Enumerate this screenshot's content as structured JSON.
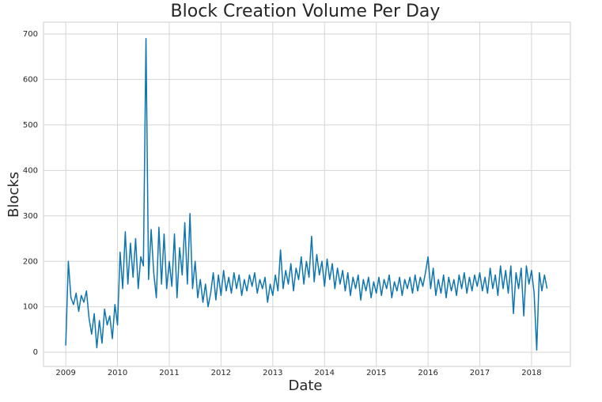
{
  "chart_data": {
    "type": "line",
    "title": "Block Creation Volume Per Day",
    "x_label": "Date",
    "y_label": "Blocks",
    "xlim": [
      2008.57,
      2018.75
    ],
    "xticks": [
      2009,
      2010,
      2011,
      2012,
      2013,
      2014,
      2015,
      2016,
      2017,
      2018
    ],
    "ylim": [
      -31,
      726
    ],
    "yticks": [
      0,
      100,
      200,
      300,
      400,
      500,
      600,
      700
    ],
    "grid": true,
    "x": [
      2009.0,
      2009.05,
      2009.1,
      2009.15,
      2009.2,
      2009.25,
      2009.3,
      2009.35,
      2009.4,
      2009.45,
      2009.5,
      2009.55,
      2009.6,
      2009.65,
      2009.7,
      2009.75,
      2009.8,
      2009.85,
      2009.9,
      2009.95,
      2010.0,
      2010.05,
      2010.1,
      2010.15,
      2010.2,
      2010.25,
      2010.3,
      2010.35,
      2010.4,
      2010.45,
      2010.5,
      2010.55,
      2010.6,
      2010.65,
      2010.7,
      2010.75,
      2010.8,
      2010.85,
      2010.9,
      2010.95,
      2011.0,
      2011.05,
      2011.1,
      2011.15,
      2011.2,
      2011.25,
      2011.3,
      2011.35,
      2011.4,
      2011.45,
      2011.5,
      2011.55,
      2011.6,
      2011.65,
      2011.7,
      2011.75,
      2011.8,
      2011.85,
      2011.9,
      2011.95,
      2012.0,
      2012.05,
      2012.1,
      2012.15,
      2012.2,
      2012.25,
      2012.3,
      2012.35,
      2012.4,
      2012.45,
      2012.5,
      2012.55,
      2012.6,
      2012.65,
      2012.7,
      2012.75,
      2012.8,
      2012.85,
      2012.9,
      2012.95,
      2013.0,
      2013.05,
      2013.1,
      2013.15,
      2013.2,
      2013.25,
      2013.3,
      2013.35,
      2013.4,
      2013.45,
      2013.5,
      2013.55,
      2013.6,
      2013.65,
      2013.7,
      2013.75,
      2013.8,
      2013.85,
      2013.9,
      2013.95,
      2014.0,
      2014.05,
      2014.1,
      2014.15,
      2014.2,
      2014.25,
      2014.3,
      2014.35,
      2014.4,
      2014.45,
      2014.5,
      2014.55,
      2014.6,
      2014.65,
      2014.7,
      2014.75,
      2014.8,
      2014.85,
      2014.9,
      2014.95,
      2015.0,
      2015.05,
      2015.1,
      2015.15,
      2015.2,
      2015.25,
      2015.3,
      2015.35,
      2015.4,
      2015.45,
      2015.5,
      2015.55,
      2015.6,
      2015.65,
      2015.7,
      2015.75,
      2015.8,
      2015.85,
      2015.9,
      2015.95,
      2016.0,
      2016.05,
      2016.1,
      2016.15,
      2016.2,
      2016.25,
      2016.3,
      2016.35,
      2016.4,
      2016.45,
      2016.5,
      2016.55,
      2016.6,
      2016.65,
      2016.7,
      2016.75,
      2016.8,
      2016.85,
      2016.9,
      2016.95,
      2017.0,
      2017.05,
      2017.1,
      2017.15,
      2017.2,
      2017.25,
      2017.3,
      2017.35,
      2017.4,
      2017.45,
      2017.5,
      2017.55,
      2017.6,
      2017.65,
      2017.7,
      2017.75,
      2017.8,
      2017.85,
      2017.9,
      2017.95,
      2018.0,
      2018.05,
      2018.1,
      2018.15,
      2018.2,
      2018.25,
      2018.3
    ],
    "series": [
      {
        "color": "#0e75ae",
        "values": [
          15,
          200,
          120,
          105,
          130,
          90,
          125,
          110,
          135,
          75,
          40,
          85,
          10,
          70,
          20,
          95,
          60,
          80,
          30,
          105,
          60,
          220,
          140,
          265,
          150,
          240,
          165,
          250,
          140,
          210,
          190,
          690,
          160,
          270,
          175,
          120,
          275,
          150,
          260,
          140,
          200,
          145,
          260,
          120,
          230,
          170,
          285,
          150,
          305,
          140,
          200,
          120,
          160,
          110,
          150,
          100,
          130,
          175,
          115,
          170,
          125,
          180,
          135,
          165,
          130,
          175,
          140,
          170,
          125,
          160,
          135,
          170,
          145,
          175,
          130,
          160,
          140,
          165,
          110,
          150,
          125,
          170,
          135,
          225,
          140,
          180,
          150,
          195,
          135,
          185,
          160,
          210,
          150,
          200,
          165,
          255,
          155,
          215,
          170,
          200,
          145,
          205,
          160,
          195,
          140,
          185,
          150,
          180,
          135,
          175,
          125,
          165,
          140,
          170,
          115,
          160,
          135,
          165,
          120,
          155,
          130,
          165,
          125,
          160,
          140,
          170,
          120,
          155,
          135,
          165,
          125,
          160,
          140,
          165,
          130,
          170,
          135,
          165,
          145,
          175,
          210,
          140,
          185,
          125,
          160,
          130,
          170,
          120,
          165,
          135,
          160,
          125,
          170,
          140,
          175,
          130,
          165,
          135,
          170,
          145,
          175,
          135,
          165,
          130,
          185,
          140,
          170,
          125,
          190,
          140,
          180,
          130,
          190,
          85,
          175,
          140,
          185,
          80,
          190,
          150,
          180,
          130,
          5,
          175,
          135,
          170,
          140
        ]
      }
    ]
  }
}
